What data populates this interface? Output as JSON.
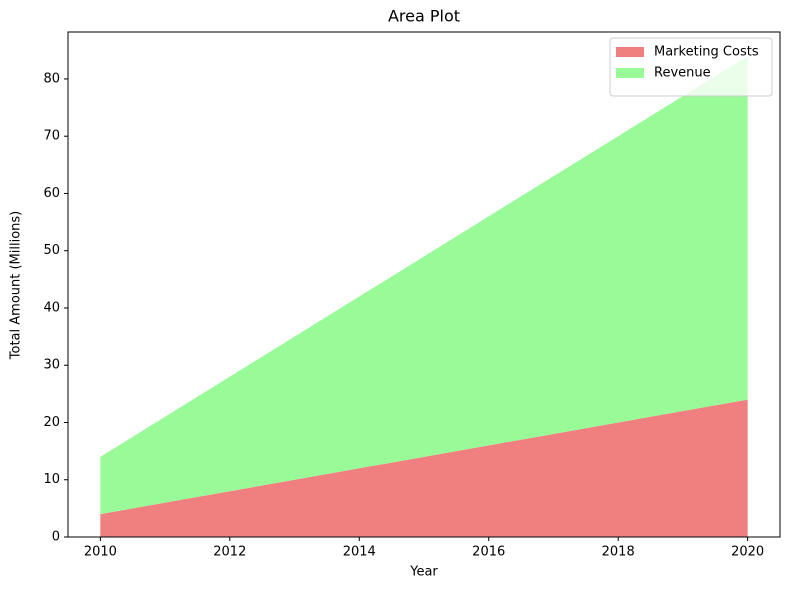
{
  "chart_data": {
    "type": "stacked_area",
    "title": "Area Plot",
    "xlabel": "Year",
    "ylabel": "Total Amount (Millions)",
    "x": [
      2010,
      2011,
      2012,
      2013,
      2014,
      2015,
      2016,
      2017,
      2018,
      2019,
      2020
    ],
    "series": [
      {
        "name": "Marketing Costs",
        "color": "#f08080",
        "values": [
          4,
          6,
          8,
          10,
          12,
          14,
          16,
          18,
          20,
          22,
          24
        ]
      },
      {
        "name": "Revenue",
        "color": "#98fb98",
        "values": [
          10,
          15,
          20,
          25,
          30,
          35,
          40,
          45,
          50,
          55,
          60
        ]
      }
    ],
    "xlim": [
      2009.5,
      2020.5
    ],
    "xticks": [
      2010,
      2012,
      2014,
      2016,
      2018,
      2020
    ],
    "ylim": [
      0,
      88.2
    ],
    "yticks": [
      0,
      10,
      20,
      30,
      40,
      50,
      60,
      70,
      80
    ],
    "legend": "upper right"
  }
}
